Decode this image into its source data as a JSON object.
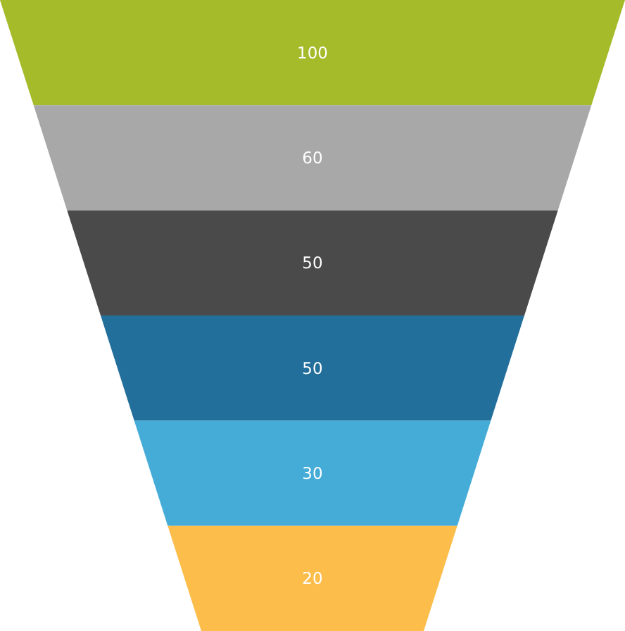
{
  "chart_data": {
    "type": "other",
    "categories": [
      null,
      null,
      null,
      null,
      null,
      null
    ],
    "values": [
      100,
      60,
      50,
      50,
      30,
      20
    ],
    "colors": [
      "#a5bb2a",
      "#a8a8a8",
      "#4a4a4a",
      "#236f9b",
      "#45acd8",
      "#fdbd4b"
    ],
    "data_labels": true
  }
}
